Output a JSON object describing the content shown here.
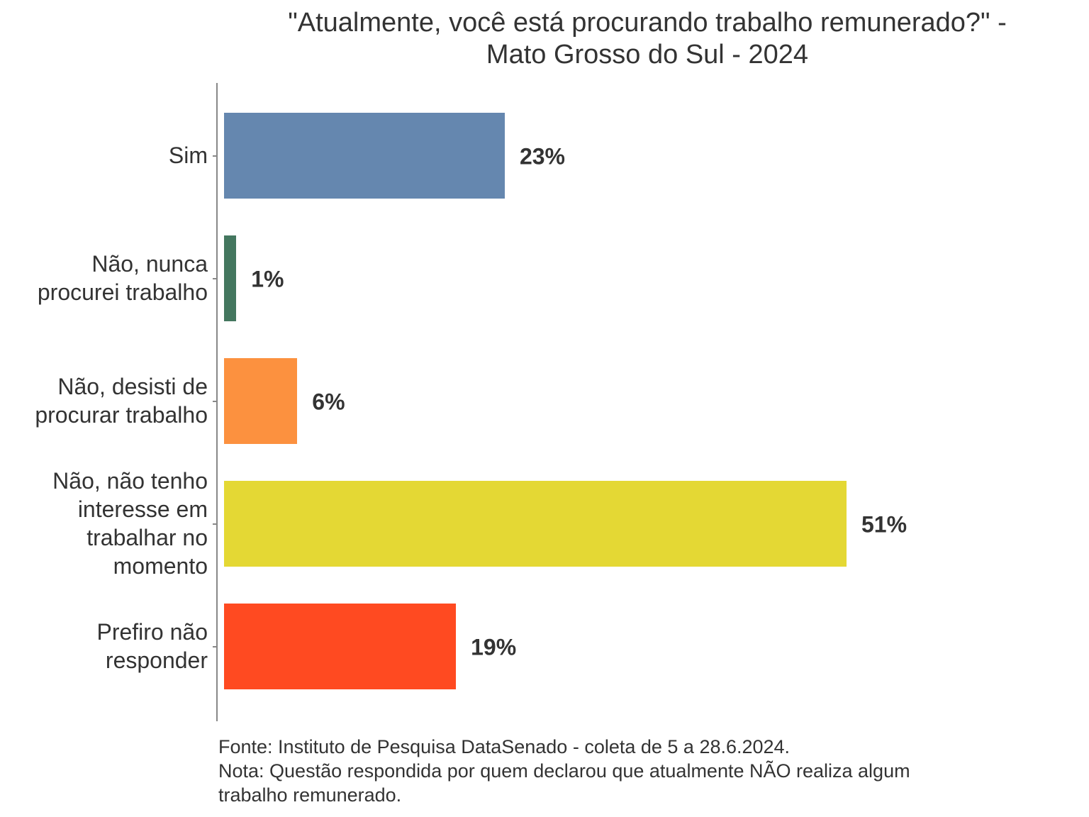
{
  "chart_data": {
    "type": "bar",
    "orientation": "horizontal",
    "title": [
      "\"Atualmente, você está procurando trabalho remunerado?\" -",
      "Mato Grosso do Sul - 2024"
    ],
    "categories": [
      [
        "Sim"
      ],
      [
        "Não, nunca",
        "procurei trabalho"
      ],
      [
        "Não, desisti de",
        "procurar trabalho"
      ],
      [
        "Não, não tenho",
        "interesse em",
        "trabalhar no",
        "momento"
      ],
      [
        "Prefiro não",
        "responder"
      ]
    ],
    "values": [
      23,
      1,
      6,
      51,
      19
    ],
    "value_labels": [
      "23%",
      "1%",
      "6%",
      "51%",
      "19%"
    ],
    "colors": [
      "#6587AF",
      "#44775F",
      "#FC913F",
      "#E4D834",
      "#FF4A21"
    ],
    "xlim": [
      0,
      55
    ],
    "xlabel": "",
    "ylabel": "",
    "grid": false,
    "footer": [
      "Fonte: Instituto de Pesquisa DataSenado - coleta de 5 a 28.6.2024.",
      "Nota: Questão respondida por quem declarou que atualmente NÃO realiza algum",
      "trabalho remunerado."
    ]
  }
}
